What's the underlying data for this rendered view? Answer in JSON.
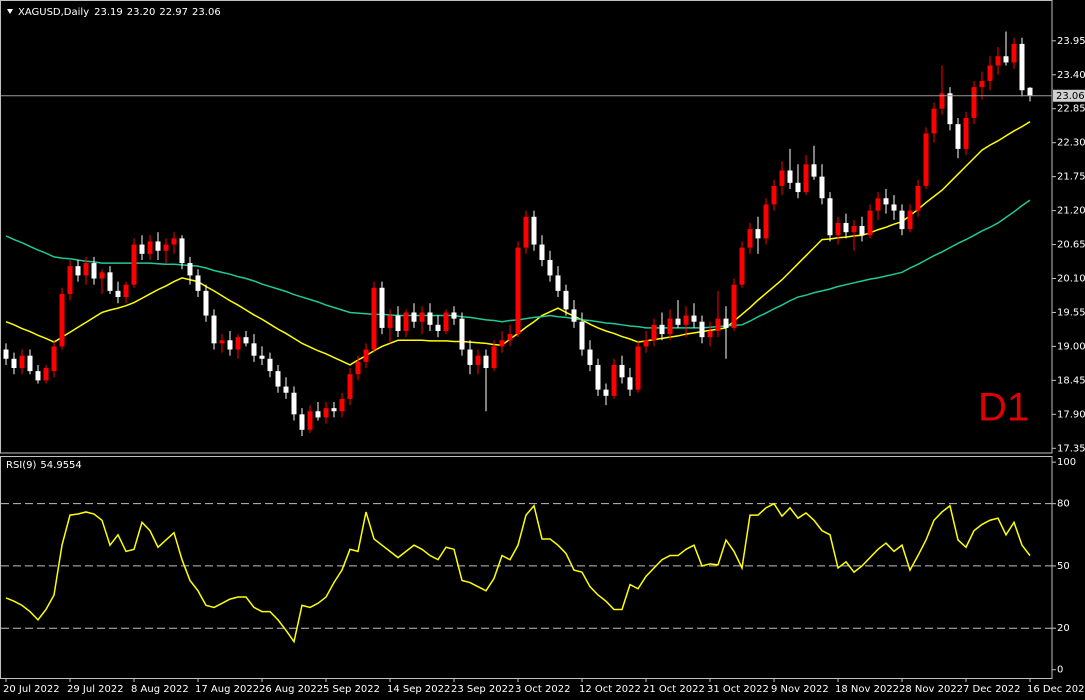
{
  "chart_data": [
    {
      "type": "candlestick",
      "title": "XAGUSD,Daily",
      "last_bar_labels": [
        "23.19",
        "23.20",
        "22.97",
        "23.06"
      ],
      "annotation": "D1",
      "categories": [
        "20 Jul 2022",
        null,
        null,
        null,
        null,
        null,
        null,
        null,
        "29 Jul 2022",
        null,
        null,
        null,
        null,
        null,
        null,
        null,
        "8 Aug 2022",
        null,
        null,
        null,
        null,
        null,
        null,
        null,
        "17 Aug 2022",
        null,
        null,
        null,
        null,
        null,
        null,
        null,
        "26 Aug 2022",
        null,
        null,
        null,
        null,
        null,
        null,
        null,
        "5 Sep 2022",
        null,
        null,
        null,
        null,
        null,
        null,
        null,
        "14 Sep 2022",
        null,
        null,
        null,
        null,
        null,
        null,
        null,
        "23 Sep 2022",
        null,
        null,
        null,
        null,
        null,
        null,
        null,
        "3 Oct 2022",
        null,
        null,
        null,
        null,
        null,
        null,
        null,
        "12 Oct 2022",
        null,
        null,
        null,
        null,
        null,
        null,
        null,
        "21 Oct 2022",
        null,
        null,
        null,
        null,
        null,
        null,
        null,
        "31 Oct 2022",
        null,
        null,
        null,
        null,
        null,
        null,
        null,
        "9 Nov 2022",
        null,
        null,
        null,
        null,
        null,
        null,
        null,
        "18 Nov 2022",
        null,
        null,
        null,
        null,
        null,
        null,
        null,
        "28 Nov 2022",
        null,
        null,
        null,
        null,
        null,
        null,
        null,
        "7 Dec 2022",
        null,
        null,
        null,
        null,
        null,
        null,
        null,
        "16 Dec 2022"
      ],
      "open": [
        18.95,
        18.8,
        18.65,
        18.85,
        18.6,
        18.45,
        18.6,
        19.0,
        19.85,
        20.3,
        20.15,
        20.35,
        20.1,
        20.2,
        19.9,
        19.8,
        20.0,
        20.65,
        20.5,
        20.7,
        20.55,
        20.65,
        20.75,
        20.35,
        20.15,
        19.9,
        19.5,
        19.05,
        19.1,
        18.95,
        19.15,
        19.05,
        18.85,
        18.8,
        18.6,
        18.35,
        18.25,
        17.9,
        17.65,
        17.95,
        17.85,
        18.0,
        17.95,
        18.15,
        18.55,
        18.75,
        18.95,
        19.95,
        19.3,
        19.5,
        19.25,
        19.55,
        19.4,
        19.55,
        19.35,
        19.25,
        19.55,
        19.45,
        18.95,
        18.7,
        18.85,
        18.65,
        19.0,
        19.1,
        19.2,
        20.6,
        21.1,
        20.65,
        20.4,
        20.15,
        19.9,
        19.6,
        19.4,
        18.95,
        18.7,
        18.3,
        18.2,
        18.7,
        18.5,
        18.3,
        19.0,
        19.1,
        19.35,
        19.2,
        19.45,
        19.35,
        19.5,
        19.4,
        19.15,
        19.25,
        19.45,
        19.3,
        20.0,
        20.6,
        20.9,
        20.75,
        21.3,
        21.6,
        21.85,
        21.65,
        21.5,
        21.95,
        21.75,
        21.4,
        20.8,
        21.0,
        20.85,
        20.95,
        20.8,
        21.2,
        21.4,
        21.3,
        21.2,
        20.9,
        21.2,
        21.6,
        22.45,
        22.85,
        23.1,
        22.6,
        22.2,
        22.7,
        23.2,
        23.3,
        23.55,
        23.7,
        23.6,
        23.9,
        23.19
      ],
      "high": [
        19.05,
        18.9,
        18.95,
        18.95,
        18.7,
        18.7,
        19.1,
        19.95,
        20.4,
        20.4,
        20.45,
        20.45,
        20.25,
        20.3,
        20.05,
        20.05,
        20.75,
        20.8,
        20.8,
        20.85,
        20.75,
        20.85,
        20.8,
        20.45,
        20.25,
        20.0,
        19.6,
        19.2,
        19.25,
        19.2,
        19.25,
        19.2,
        19.0,
        18.9,
        18.7,
        18.5,
        18.35,
        18.0,
        18.05,
        18.1,
        18.1,
        18.1,
        18.25,
        18.65,
        18.85,
        19.05,
        20.05,
        20.05,
        19.6,
        19.65,
        19.6,
        19.7,
        19.65,
        19.7,
        19.5,
        19.6,
        19.65,
        19.55,
        19.1,
        18.95,
        18.95,
        19.1,
        19.25,
        19.35,
        20.7,
        21.2,
        21.2,
        20.8,
        20.55,
        20.3,
        20.0,
        19.75,
        19.55,
        19.1,
        18.8,
        18.4,
        18.8,
        18.85,
        18.65,
        19.1,
        19.25,
        19.45,
        19.55,
        19.6,
        19.75,
        19.65,
        19.7,
        19.5,
        19.4,
        19.9,
        19.65,
        20.1,
        20.7,
        21.0,
        21.1,
        21.4,
        21.7,
        22.0,
        22.2,
        21.95,
        22.1,
        22.25,
        21.95,
        21.5,
        21.1,
        21.15,
        21.05,
        21.1,
        21.3,
        21.5,
        21.55,
        21.45,
        21.3,
        21.3,
        21.7,
        22.55,
        22.95,
        23.55,
        23.2,
        22.7,
        22.8,
        23.3,
        23.45,
        23.7,
        23.85,
        24.1,
        24.0,
        24.0,
        23.2
      ],
      "low": [
        18.7,
        18.55,
        18.55,
        18.55,
        18.4,
        18.4,
        18.5,
        18.95,
        19.75,
        20.05,
        20.0,
        20.0,
        19.85,
        19.85,
        19.7,
        19.7,
        19.95,
        20.4,
        20.4,
        20.4,
        20.35,
        20.5,
        20.25,
        20.0,
        19.8,
        19.4,
        18.95,
        18.9,
        18.85,
        18.8,
        19.0,
        18.75,
        18.7,
        18.5,
        18.25,
        18.15,
        17.8,
        17.55,
        17.6,
        17.8,
        17.75,
        17.85,
        17.85,
        18.05,
        18.45,
        18.65,
        18.9,
        19.2,
        19.05,
        19.15,
        19.15,
        19.3,
        19.2,
        19.25,
        19.15,
        19.2,
        19.35,
        18.85,
        18.55,
        18.55,
        17.95,
        18.6,
        18.9,
        19.0,
        19.15,
        20.5,
        20.55,
        20.3,
        20.05,
        19.8,
        19.5,
        19.3,
        18.85,
        18.6,
        18.2,
        18.05,
        18.15,
        18.4,
        18.2,
        18.25,
        18.9,
        19.0,
        19.1,
        19.1,
        19.3,
        19.15,
        19.3,
        19.05,
        19.0,
        19.15,
        18.8,
        19.25,
        19.95,
        20.5,
        20.5,
        20.65,
        21.2,
        21.45,
        21.55,
        21.4,
        21.45,
        21.7,
        21.3,
        20.7,
        20.65,
        20.75,
        20.55,
        20.7,
        20.75,
        21.05,
        21.15,
        21.05,
        20.8,
        20.85,
        21.1,
        21.55,
        22.3,
        22.75,
        22.5,
        22.05,
        22.1,
        22.6,
        23.0,
        23.15,
        23.4,
        23.55,
        23.5,
        23.05,
        22.97
      ],
      "close": [
        18.8,
        18.65,
        18.85,
        18.6,
        18.45,
        18.65,
        19.0,
        19.85,
        20.3,
        20.15,
        20.35,
        20.1,
        20.2,
        19.9,
        19.8,
        20.0,
        20.65,
        20.5,
        20.7,
        20.55,
        20.65,
        20.75,
        20.35,
        20.15,
        19.9,
        19.5,
        19.05,
        19.1,
        18.95,
        19.15,
        19.05,
        18.85,
        18.8,
        18.6,
        18.35,
        18.25,
        17.9,
        17.65,
        17.95,
        17.85,
        18.0,
        17.95,
        18.15,
        18.55,
        18.75,
        18.95,
        19.95,
        19.3,
        19.5,
        19.25,
        19.55,
        19.4,
        19.55,
        19.35,
        19.25,
        19.55,
        19.45,
        18.95,
        18.7,
        18.85,
        18.65,
        19.0,
        19.1,
        19.2,
        20.6,
        21.1,
        20.65,
        20.4,
        20.15,
        19.9,
        19.6,
        19.4,
        18.95,
        18.7,
        18.3,
        18.2,
        18.7,
        18.5,
        18.3,
        19.0,
        19.1,
        19.35,
        19.2,
        19.45,
        19.35,
        19.5,
        19.4,
        19.15,
        19.25,
        19.45,
        19.3,
        20.0,
        20.6,
        20.9,
        20.75,
        21.3,
        21.6,
        21.85,
        21.65,
        21.5,
        21.95,
        21.75,
        21.4,
        20.8,
        21.0,
        20.85,
        20.95,
        20.8,
        21.2,
        21.4,
        21.3,
        21.2,
        20.9,
        21.2,
        21.6,
        22.45,
        22.85,
        23.1,
        22.6,
        22.2,
        22.7,
        23.2,
        23.3,
        23.55,
        23.7,
        23.6,
        23.9,
        23.15,
        23.06
      ],
      "up_color": "#ff0000",
      "down_color": "#ffffff",
      "overlays": [
        {
          "color": "#ffff00",
          "values": [
            19.4,
            19.35,
            19.29,
            19.24,
            19.18,
            19.13,
            19.07,
            19.15,
            19.23,
            19.31,
            19.39,
            19.47,
            19.55,
            19.59,
            19.62,
            19.66,
            19.71,
            19.78,
            19.85,
            19.92,
            19.98,
            20.05,
            20.11,
            20.08,
            20.05,
            19.97,
            19.9,
            19.82,
            19.74,
            19.67,
            19.59,
            19.51,
            19.44,
            19.36,
            19.28,
            19.21,
            19.13,
            19.05,
            18.99,
            18.93,
            18.88,
            18.82,
            18.76,
            18.7,
            18.78,
            18.85,
            18.93,
            19.0,
            19.05,
            19.1,
            19.1,
            19.1,
            19.1,
            19.09,
            19.09,
            19.09,
            19.08,
            19.08,
            19.07,
            19.06,
            19.05,
            19.03,
            19.02,
            19.12,
            19.21,
            19.31,
            19.4,
            19.5,
            19.56,
            19.62,
            19.55,
            19.49,
            19.43,
            19.36,
            19.3,
            19.25,
            19.21,
            19.16,
            19.12,
            19.07,
            19.09,
            19.11,
            19.13,
            19.15,
            19.17,
            19.2,
            19.22,
            19.24,
            19.26,
            19.28,
            19.3,
            19.41,
            19.52,
            19.63,
            19.75,
            19.86,
            19.97,
            20.08,
            20.21,
            20.34,
            20.47,
            20.6,
            20.73,
            20.74,
            20.76,
            20.77,
            20.79,
            20.8,
            20.84,
            20.89,
            20.93,
            20.98,
            21.02,
            21.12,
            21.22,
            21.33,
            21.43,
            21.53,
            21.66,
            21.79,
            21.92,
            22.05,
            22.18,
            22.26,
            22.33,
            22.41,
            22.49,
            22.56,
            22.64
          ]
        },
        {
          "color": "#20c997",
          "values": [
            20.79,
            20.73,
            20.68,
            20.62,
            20.56,
            20.51,
            20.45,
            20.43,
            20.42,
            20.4,
            20.38,
            20.37,
            20.35,
            20.35,
            20.35,
            20.35,
            20.35,
            20.35,
            20.35,
            20.34,
            20.33,
            20.33,
            20.32,
            20.31,
            20.3,
            20.27,
            20.23,
            20.2,
            20.17,
            20.13,
            20.1,
            20.06,
            20.01,
            19.97,
            19.93,
            19.89,
            19.84,
            19.8,
            19.76,
            19.72,
            19.67,
            19.63,
            19.59,
            19.55,
            19.54,
            19.53,
            19.52,
            19.52,
            19.51,
            19.5,
            19.5,
            19.5,
            19.5,
            19.5,
            19.5,
            19.5,
            19.5,
            19.48,
            19.47,
            19.45,
            19.43,
            19.42,
            19.4,
            19.42,
            19.43,
            19.45,
            19.47,
            19.48,
            19.5,
            19.48,
            19.47,
            19.45,
            19.43,
            19.42,
            19.4,
            19.38,
            19.37,
            19.35,
            19.33,
            19.32,
            19.3,
            19.3,
            19.3,
            19.3,
            19.3,
            19.3,
            19.3,
            19.3,
            19.31,
            19.32,
            19.33,
            19.34,
            19.35,
            19.41,
            19.48,
            19.54,
            19.61,
            19.67,
            19.74,
            19.8,
            19.83,
            19.87,
            19.9,
            19.93,
            19.97,
            20.0,
            20.03,
            20.06,
            20.09,
            20.11,
            20.14,
            20.17,
            20.2,
            20.27,
            20.33,
            20.4,
            20.47,
            20.53,
            20.6,
            20.67,
            20.73,
            20.8,
            20.87,
            20.93,
            21.0,
            21.09,
            21.18,
            21.28,
            21.37
          ]
        }
      ],
      "ylim": [
        17.29,
        24.53
      ],
      "yticks": [
        23.95,
        {
          "value": 23.4,
          "label": "23.40"
        },
        22.85,
        {
          "value": 22.3,
          "label": "22.30"
        },
        21.75,
        {
          "value": 21.2,
          "label": "21.20"
        },
        20.65,
        {
          "value": 20.1,
          "label": "20.10"
        },
        19.55,
        {
          "value": 19,
          "label": "19.00"
        },
        18.45,
        {
          "value": 17.9,
          "label": "17.90"
        },
        17.35
      ]
    },
    {
      "type": "line",
      "title": "RSI(9)",
      "color": "#ffff00",
      "values": [
        34.6,
        33,
        31,
        28,
        24,
        29,
        36,
        60,
        74.5,
        75,
        76,
        75,
        72,
        60,
        65,
        57,
        58,
        71,
        67,
        59,
        62.5,
        66,
        53,
        43,
        38,
        31,
        30,
        32,
        34,
        35,
        35,
        30,
        28,
        28,
        24,
        19,
        13.5,
        31,
        30,
        32,
        35,
        42,
        48,
        58,
        57,
        76,
        63,
        60,
        57,
        54,
        57,
        60,
        58,
        55,
        53,
        59,
        58,
        43,
        42,
        40,
        38,
        44,
        55,
        53,
        60,
        74.5,
        79,
        63,
        63,
        60,
        56,
        48,
        47,
        40,
        36,
        33,
        29,
        29,
        41,
        39,
        45,
        49,
        53,
        55,
        55,
        58,
        60,
        50,
        51,
        50.5,
        62.5,
        57,
        49,
        74.5,
        74.5,
        78,
        80,
        74,
        78,
        73,
        75.5,
        72,
        67,
        65,
        49,
        52,
        47,
        50,
        54,
        58,
        61,
        57,
        60,
        48,
        55,
        62.5,
        72,
        76,
        79,
        62.5,
        59,
        67,
        70,
        72,
        73,
        65,
        71,
        60,
        54.9554
      ],
      "ylim": [
        -4,
        102
      ],
      "yticks": [
        0,
        20,
        50,
        80,
        100
      ],
      "levels": [
        20,
        50,
        80
      ]
    }
  ]
}
